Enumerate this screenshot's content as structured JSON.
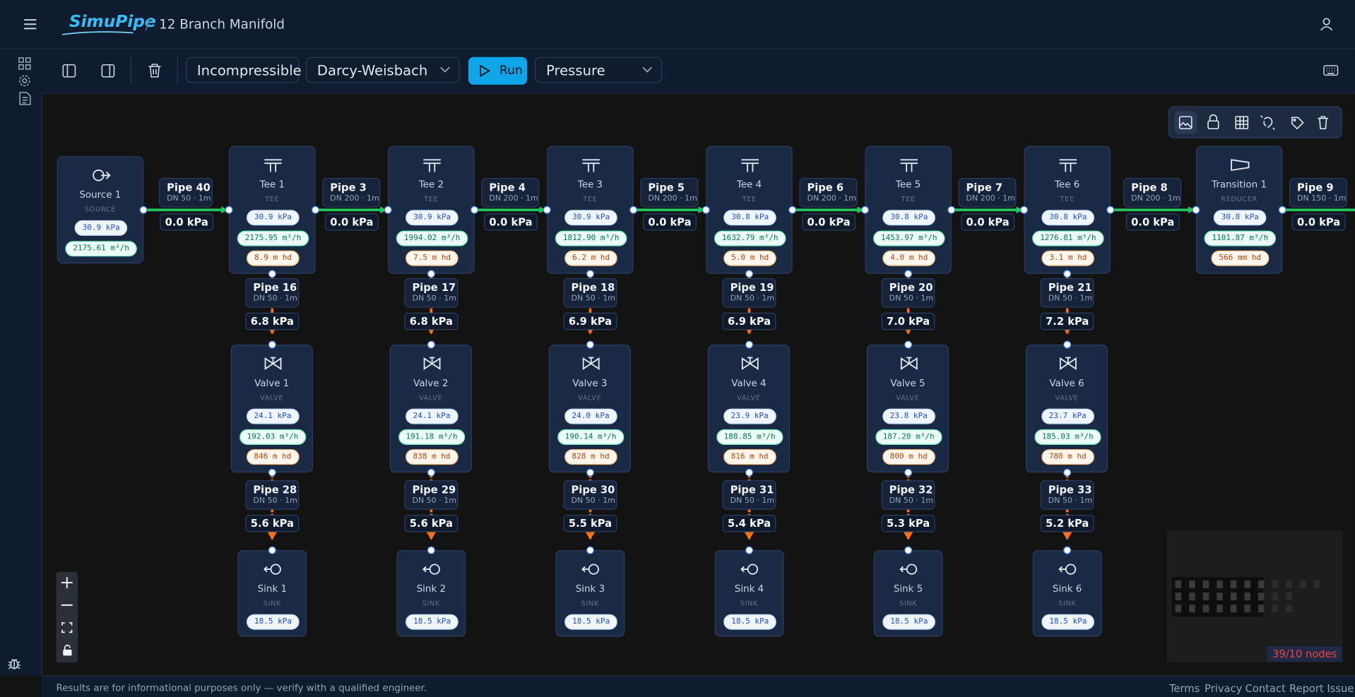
{
  "header": {
    "app_name": "SimuPipe",
    "separator": "/",
    "project": "12 Branch Manifold"
  },
  "toolbar": {
    "flow_model": "Incompressible",
    "friction_model": "Darcy-Weisbach",
    "run": "Run",
    "view_mode": "Pressure"
  },
  "nodes": {
    "source": {
      "label": "Source 1",
      "kind": "SOURCE",
      "pressure": "30.9 kPa",
      "flow": "2175.61 m³/h"
    },
    "tees": [
      {
        "label": "Tee 1",
        "kind": "TEE",
        "pressure": "30.9 kPa",
        "flow": "2175.95 m³/h",
        "head": "8.9 m hd"
      },
      {
        "label": "Tee 2",
        "kind": "TEE",
        "pressure": "30.9 kPa",
        "flow": "1994.02 m³/h",
        "head": "7.5 m hd"
      },
      {
        "label": "Tee 3",
        "kind": "TEE",
        "pressure": "30.9 kPa",
        "flow": "1812.90 m³/h",
        "head": "6.2 m hd"
      },
      {
        "label": "Tee 4",
        "kind": "TEE",
        "pressure": "30.8 kPa",
        "flow": "1632.79 m³/h",
        "head": "5.0 m hd"
      },
      {
        "label": "Tee 5",
        "kind": "TEE",
        "pressure": "30.8 kPa",
        "flow": "1453.97 m³/h",
        "head": "4.0 m hd"
      },
      {
        "label": "Tee 6",
        "kind": "TEE",
        "pressure": "30.8 kPa",
        "flow": "1276.81 m³/h",
        "head": "3.1 m hd"
      }
    ],
    "transition": {
      "label": "Transition 1",
      "kind": "REDUCER",
      "pressure": "30.8 kPa",
      "flow": "1101.87 m³/h",
      "head": "566 mm hd"
    },
    "valves": [
      {
        "label": "Valve 1",
        "kind": "VALVE",
        "pressure": "24.1 kPa",
        "flow": "192.03 m³/h",
        "head": "846 m hd"
      },
      {
        "label": "Valve 2",
        "kind": "VALVE",
        "pressure": "24.1 kPa",
        "flow": "191.18 m³/h",
        "head": "838 m hd"
      },
      {
        "label": "Valve 3",
        "kind": "VALVE",
        "pressure": "24.0 kPa",
        "flow": "190.14 m³/h",
        "head": "828 m hd"
      },
      {
        "label": "Valve 4",
        "kind": "VALVE",
        "pressure": "23.9 kPa",
        "flow": "188.85 m³/h",
        "head": "816 m hd"
      },
      {
        "label": "Valve 5",
        "kind": "VALVE",
        "pressure": "23.8 kPa",
        "flow": "187.20 m³/h",
        "head": "800 m hd"
      },
      {
        "label": "Valve 6",
        "kind": "VALVE",
        "pressure": "23.7 kPa",
        "flow": "185.03 m³/h",
        "head": "780 m hd"
      }
    ],
    "sinks": [
      {
        "label": "Sink 1",
        "kind": "SINK",
        "pressure": "18.5 kPa"
      },
      {
        "label": "Sink 2",
        "kind": "SINK",
        "pressure": "18.5 kPa"
      },
      {
        "label": "Sink 3",
        "kind": "SINK",
        "pressure": "18.5 kPa"
      },
      {
        "label": "Sink 4",
        "kind": "SINK",
        "pressure": "18.5 kPa"
      },
      {
        "label": "Sink 5",
        "kind": "SINK",
        "pressure": "18.5 kPa"
      },
      {
        "label": "Sink 6",
        "kind": "SINK",
        "pressure": "18.5 kPa"
      }
    ]
  },
  "pipes": {
    "main": [
      {
        "label": "Pipe 40",
        "spec": "DN 50 · 1m",
        "pressure": "0.0 kPa"
      },
      {
        "label": "Pipe 3",
        "spec": "DN 200 · 1m",
        "pressure": "0.0 kPa"
      },
      {
        "label": "Pipe 4",
        "spec": "DN 200 · 1m",
        "pressure": "0.0 kPa"
      },
      {
        "label": "Pipe 5",
        "spec": "DN 200 · 1m",
        "pressure": "0.0 kPa"
      },
      {
        "label": "Pipe 6",
        "spec": "DN 200 · 1m",
        "pressure": "0.0 kPa"
      },
      {
        "label": "Pipe 7",
        "spec": "DN 200 · 1m",
        "pressure": "0.0 kPa"
      },
      {
        "label": "Pipe 8",
        "spec": "DN 200 · 1m",
        "pressure": "0.0 kPa"
      },
      {
        "label": "Pipe 9",
        "spec": "DN 150 · 1m",
        "pressure": "0.0 kPa"
      }
    ],
    "branch_upper": [
      {
        "label": "Pipe 16",
        "spec": "DN 50 · 1m",
        "pressure": "6.8 kPa"
      },
      {
        "label": "Pipe 17",
        "spec": "DN 50 · 1m",
        "pressure": "6.8 kPa"
      },
      {
        "label": "Pipe 18",
        "spec": "DN 50 · 1m",
        "pressure": "6.9 kPa"
      },
      {
        "label": "Pipe 19",
        "spec": "DN 50 · 1m",
        "pressure": "6.9 kPa"
      },
      {
        "label": "Pipe 20",
        "spec": "DN 50 · 1m",
        "pressure": "7.0 kPa"
      },
      {
        "label": "Pipe 21",
        "spec": "DN 50 · 1m",
        "pressure": "7.2 kPa"
      }
    ],
    "branch_lower": [
      {
        "label": "Pipe 28",
        "spec": "DN 50 · 1m",
        "pressure": "5.6 kPa"
      },
      {
        "label": "Pipe 29",
        "spec": "DN 50 · 1m",
        "pressure": "5.6 kPa"
      },
      {
        "label": "Pipe 30",
        "spec": "DN 50 · 1m",
        "pressure": "5.5 kPa"
      },
      {
        "label": "Pipe 31",
        "spec": "DN 50 · 1m",
        "pressure": "5.4 kPa"
      },
      {
        "label": "Pipe 32",
        "spec": "DN 50 · 1m",
        "pressure": "5.3 kPa"
      },
      {
        "label": "Pipe 33",
        "spec": "DN 50 · 1m",
        "pressure": "5.2 kPa"
      }
    ]
  },
  "minimap": {
    "node_count": "39/10 nodes"
  },
  "footer": {
    "disclaimer": "Results are for informational purposes only — verify with a qualified engineer.",
    "links": [
      "Terms",
      "Privacy",
      "Contact",
      "Report Issue"
    ]
  }
}
